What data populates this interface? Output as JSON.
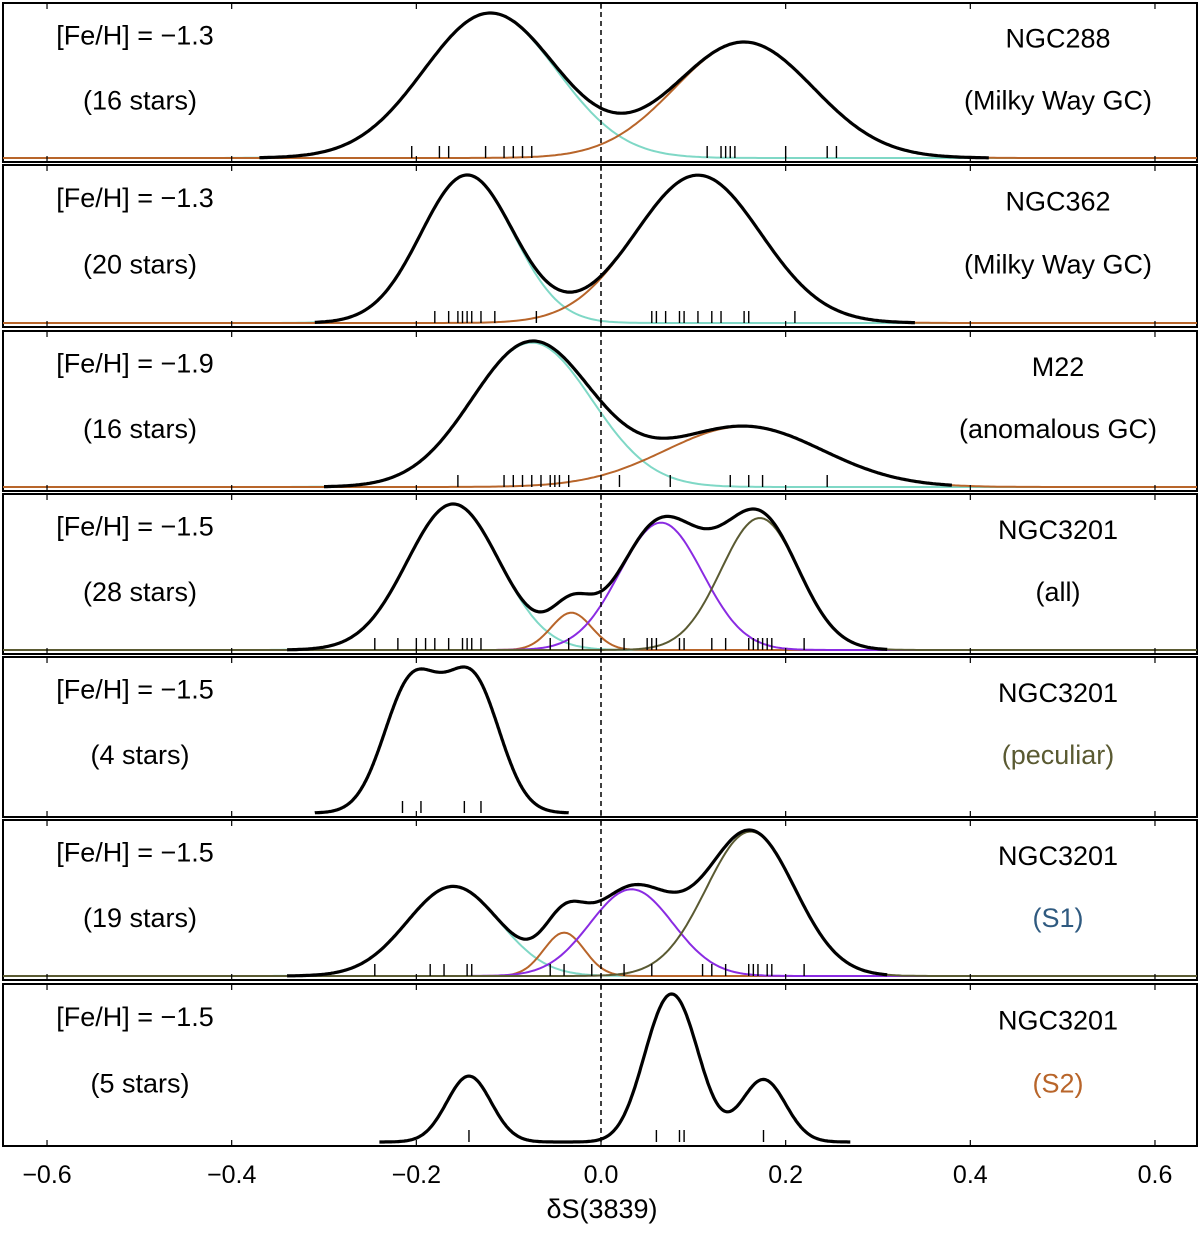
{
  "chart_data": {
    "type": "line",
    "xlabel": "δS(3839)",
    "xlim": [
      -0.65,
      0.65
    ],
    "xticks": [
      -0.6,
      -0.4,
      -0.2,
      0.0,
      0.2,
      0.4,
      0.6
    ],
    "xtick_labels": [
      "−0.6",
      "−0.4",
      "−0.2",
      "0.0",
      "0.2",
      "0.4",
      "0.6"
    ],
    "reference_line_x": 0.0,
    "colors": {
      "total": "#000000",
      "comp_cyan": "#7fd8c6",
      "comp_orange": "#b8652a",
      "comp_purple": "#8a2be2",
      "comp_olive": "#5a5a32",
      "s1_label": "#2f5a80",
      "s2_label": "#b8652a",
      "peculiar_label": "#5a5a32"
    },
    "panels": [
      {
        "metallicity": "[Fe/H] = −1.3",
        "stars": "(16 stars)",
        "name": "NGC288",
        "subtitle": "(Milky Way GC)",
        "subtitle_color": "#000000",
        "x_range": [
          -0.37,
          0.42
        ],
        "components": [
          {
            "mu": -0.12,
            "sigma": 0.072,
            "amp": 1.0,
            "color": "#7fd8c6"
          },
          {
            "mu": 0.155,
            "sigma": 0.075,
            "amp": 0.8,
            "color": "#b8652a"
          }
        ],
        "stars_x": [
          -0.205,
          -0.175,
          -0.165,
          -0.125,
          -0.105,
          -0.095,
          -0.085,
          -0.075,
          0.115,
          0.13,
          0.135,
          0.14,
          0.145,
          0.2,
          0.245,
          0.255
        ]
      },
      {
        "metallicity": "[Fe/H] = −1.3",
        "stars": "(20 stars)",
        "name": "NGC362",
        "subtitle": "(Milky Way GC)",
        "subtitle_color": "#000000",
        "x_range": [
          -0.31,
          0.34
        ],
        "components": [
          {
            "mu": -0.145,
            "sigma": 0.05,
            "amp": 1.0,
            "color": "#7fd8c6"
          },
          {
            "mu": 0.105,
            "sigma": 0.068,
            "amp": 1.0,
            "color": "#b8652a"
          }
        ],
        "stars_x": [
          -0.18,
          -0.165,
          -0.155,
          -0.15,
          -0.145,
          -0.14,
          -0.13,
          -0.115,
          -0.07,
          0.055,
          0.06,
          0.07,
          0.085,
          0.09,
          0.105,
          0.12,
          0.13,
          0.155,
          0.16,
          0.21
        ]
      },
      {
        "metallicity": "[Fe/H] = −1.9",
        "stars": "(16 stars)",
        "name": "M22",
        "subtitle": "(anomalous GC)",
        "subtitle_color": "#000000",
        "x_range": [
          -0.3,
          0.38
        ],
        "components": [
          {
            "mu": -0.075,
            "sigma": 0.065,
            "amp": 1.0,
            "color": "#7fd8c6"
          },
          {
            "mu": 0.155,
            "sigma": 0.085,
            "amp": 0.42,
            "color": "#b8652a"
          }
        ],
        "stars_x": [
          -0.155,
          -0.105,
          -0.095,
          -0.085,
          -0.075,
          -0.065,
          -0.055,
          -0.05,
          -0.045,
          -0.035,
          0.02,
          0.075,
          0.14,
          0.16,
          0.175,
          0.245
        ]
      },
      {
        "metallicity": "[Fe/H] = −1.5",
        "stars": "(28 stars)",
        "name": "NGC3201",
        "subtitle": "(all)",
        "subtitle_color": "#000000",
        "x_range": [
          -0.34,
          0.31
        ],
        "components": [
          {
            "mu": -0.16,
            "sigma": 0.05,
            "amp": 0.94,
            "color": "#7fd8c6"
          },
          {
            "mu": -0.032,
            "sigma": 0.022,
            "amp": 0.24,
            "color": "#b8652a"
          },
          {
            "mu": 0.065,
            "sigma": 0.045,
            "amp": 0.82,
            "color": "#8a2be2"
          },
          {
            "mu": 0.172,
            "sigma": 0.042,
            "amp": 0.85,
            "color": "#5a5a32"
          }
        ],
        "stars_x": [
          -0.245,
          -0.22,
          -0.2,
          -0.19,
          -0.18,
          -0.165,
          -0.15,
          -0.145,
          -0.14,
          -0.13,
          -0.055,
          -0.035,
          -0.02,
          0.025,
          0.05,
          0.055,
          0.06,
          0.085,
          0.09,
          0.12,
          0.135,
          0.16,
          0.165,
          0.17,
          0.175,
          0.18,
          0.185,
          0.22
        ]
      },
      {
        "metallicity": "[Fe/H] = −1.5",
        "stars": "(4 stars)",
        "name": "NGC3201",
        "subtitle": "(peculiar)",
        "subtitle_color": "#5a5a32",
        "x_range": [
          -0.31,
          -0.035
        ],
        "components": [],
        "total_components": [
          {
            "mu": -0.215,
            "sigma": 0.028,
            "amp": 0.5
          },
          {
            "mu": -0.195,
            "sigma": 0.028,
            "amp": 0.5
          },
          {
            "mu": -0.148,
            "sigma": 0.028,
            "amp": 0.5
          },
          {
            "mu": -0.13,
            "sigma": 0.028,
            "amp": 0.5
          }
        ],
        "stars_x": [
          -0.215,
          -0.195,
          -0.148,
          -0.13
        ]
      },
      {
        "metallicity": "[Fe/H] = −1.5",
        "stars": "(19 stars)",
        "name": "NGC3201",
        "subtitle": "(S1)",
        "subtitle_color": "#2f5a80",
        "x_range": [
          -0.34,
          0.31
        ],
        "components": [
          {
            "mu": -0.16,
            "sigma": 0.05,
            "amp": 0.62,
            "color": "#7fd8c6"
          },
          {
            "mu": -0.04,
            "sigma": 0.022,
            "amp": 0.3,
            "color": "#b8652a"
          },
          {
            "mu": 0.033,
            "sigma": 0.045,
            "amp": 0.6,
            "color": "#8a2be2"
          },
          {
            "mu": 0.162,
            "sigma": 0.048,
            "amp": 1.0,
            "color": "#5a5a32"
          }
        ],
        "stars_x": [
          -0.245,
          -0.185,
          -0.17,
          -0.145,
          -0.14,
          -0.055,
          -0.04,
          -0.01,
          0.025,
          0.055,
          0.11,
          0.12,
          0.135,
          0.16,
          0.165,
          0.17,
          0.18,
          0.185,
          0.22
        ]
      },
      {
        "metallicity": "[Fe/H] = −1.5",
        "stars": "(5 stars)",
        "name": "NGC3201",
        "subtitle": "(S2)",
        "subtitle_color": "#b8652a",
        "x_range": [
          -0.24,
          0.27
        ],
        "components": [],
        "total_components": [
          {
            "mu": -0.143,
            "sigma": 0.024,
            "amp": 0.38
          },
          {
            "mu": 0.063,
            "sigma": 0.024,
            "amp": 0.5
          },
          {
            "mu": 0.09,
            "sigma": 0.024,
            "amp": 0.5
          },
          {
            "mu": 0.176,
            "sigma": 0.024,
            "amp": 0.36
          }
        ],
        "stars_x": [
          -0.143,
          0.06,
          0.085,
          0.09,
          0.176
        ]
      }
    ]
  }
}
